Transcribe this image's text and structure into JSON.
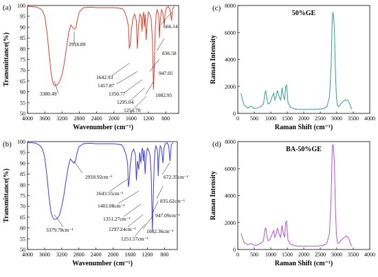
{
  "chart_data": [
    {
      "panel": "(a)",
      "type": "line",
      "xlabel": "Wavenumber (cm⁻¹)",
      "ylabel": "Transmittance(%)",
      "xlim": [
        4000,
        500
      ],
      "ylim": [
        50,
        100
      ],
      "xticks": [
        4000,
        3600,
        3200,
        2800,
        2400,
        2000,
        1600,
        1200,
        800
      ],
      "yticks": [
        50,
        55,
        60,
        65,
        70,
        75,
        80,
        85,
        90,
        95,
        100
      ],
      "color": "#d9402b",
      "x": [
        4000,
        3900,
        3800,
        3700,
        3650,
        3600,
        3550,
        3500,
        3450,
        3400,
        3380,
        3340,
        3300,
        3250,
        3200,
        3150,
        3100,
        3050,
        3000,
        2960,
        2918,
        2880,
        2850,
        2800,
        2700,
        2600,
        2500,
        2400,
        2300,
        2200,
        2100,
        2000,
        1900,
        1800,
        1750,
        1700,
        1660,
        1642,
        1620,
        1600,
        1560,
        1520,
        1480,
        1457,
        1430,
        1400,
        1370,
        1350,
        1330,
        1310,
        1295,
        1275,
        1254,
        1230,
        1200,
        1170,
        1140,
        1110,
        1082,
        1060,
        1040,
        1020,
        1000,
        980,
        960,
        947,
        930,
        900,
        870,
        836,
        810,
        780,
        740,
        700,
        666,
        640,
        600
      ],
      "y": [
        99.5,
        99.5,
        99.3,
        98.5,
        97.5,
        95,
        88,
        78,
        68,
        63.5,
        63,
        63,
        63.5,
        65,
        68,
        73,
        80,
        87,
        91,
        90,
        89,
        89.5,
        93,
        97,
        99,
        99.2,
        99.2,
        99,
        99,
        99,
        99,
        99,
        98.8,
        98.5,
        97,
        94,
        90,
        80,
        82,
        88,
        94,
        96,
        93,
        80,
        90,
        96,
        95,
        88,
        95,
        97,
        90,
        96,
        84,
        92,
        97,
        96,
        94,
        85,
        61,
        75,
        90,
        96,
        98,
        97,
        95,
        85,
        92,
        98,
        97,
        91,
        97,
        99,
        99.5,
        98,
        93,
        98.5,
        99.5
      ],
      "annotations": [
        "3380.49",
        "2918.89",
        "1642.93",
        "1457.87",
        "1350.77",
        "1295.04",
        "1254.70",
        "1082.95",
        "947.05",
        "836.58",
        "666.14"
      ]
    },
    {
      "panel": "(b)",
      "type": "line",
      "xlabel": "Wavenumber (cm⁻¹)",
      "ylabel": "Transmittance(%)",
      "xlim": [
        4000,
        500
      ],
      "ylim": [
        50,
        100
      ],
      "xticks": [
        4000,
        3600,
        3200,
        2800,
        2400,
        2000,
        1600,
        1200,
        800
      ],
      "yticks": [
        50,
        55,
        60,
        65,
        70,
        75,
        80,
        85,
        90,
        95,
        100
      ],
      "color": "#3a3ad9",
      "x": [
        4000,
        3900,
        3800,
        3700,
        3650,
        3600,
        3550,
        3500,
        3450,
        3400,
        3380,
        3340,
        3300,
        3250,
        3200,
        3150,
        3100,
        3050,
        3000,
        2960,
        2918,
        2880,
        2850,
        2800,
        2700,
        2600,
        2500,
        2400,
        2300,
        2200,
        2100,
        2000,
        1900,
        1800,
        1750,
        1700,
        1660,
        1643,
        1620,
        1600,
        1560,
        1520,
        1480,
        1455,
        1430,
        1401,
        1380,
        1351,
        1330,
        1310,
        1297,
        1275,
        1251,
        1230,
        1200,
        1170,
        1140,
        1110,
        1082,
        1060,
        1040,
        1020,
        1000,
        980,
        960,
        947,
        930,
        900,
        870,
        835,
        810,
        780,
        740,
        700,
        672,
        640,
        600
      ],
      "y": [
        99.5,
        99.5,
        99.2,
        98,
        96.5,
        93,
        85,
        75,
        67,
        64.5,
        64,
        64,
        64.5,
        66,
        70,
        75,
        82,
        88,
        92,
        91,
        90,
        91,
        94,
        97.5,
        99,
        99.2,
        99.2,
        99,
        99,
        99,
        99,
        99,
        98.8,
        98.5,
        97,
        94,
        90,
        79,
        82,
        89,
        95,
        96.5,
        94,
        82,
        91,
        87,
        95,
        90,
        96,
        97,
        91,
        96,
        85,
        93,
        97,
        96,
        94,
        85,
        59,
        75,
        90,
        96,
        98,
        97,
        95,
        84,
        92,
        98,
        97,
        90,
        97,
        99,
        99.5,
        98,
        91,
        98.5,
        99.5
      ],
      "annotations": [
        "3379.78cm⁻¹",
        "2918.92cm⁻¹",
        "1643.55cm⁻¹",
        "1401.08cm⁻¹",
        "1351.27cm⁻¹",
        "1297.24cm⁻¹",
        "1251.57cm⁻¹",
        "1082.36cm⁻¹",
        "947.09cm⁻¹",
        "835.62cm⁻¹",
        "672.35cm⁻¹"
      ]
    },
    {
      "panel": "(c)",
      "type": "line",
      "title": "50%GE",
      "xlabel": "Raman Shift (cm⁻¹)",
      "ylabel": "Raman Intensity",
      "xlim": [
        0,
        4000
      ],
      "ylim": [
        0,
        8000
      ],
      "xticks": [
        0,
        500,
        1000,
        1500,
        2000,
        2500,
        3000,
        3500,
        4000
      ],
      "yticks": [
        0,
        2000,
        4000,
        6000,
        8000
      ],
      "color": "#2e9c8c",
      "x": [
        100,
        150,
        200,
        300,
        400,
        500,
        600,
        700,
        780,
        820,
        850,
        880,
        920,
        980,
        1050,
        1090,
        1120,
        1160,
        1200,
        1260,
        1300,
        1340,
        1380,
        1420,
        1450,
        1480,
        1520,
        1600,
        1700,
        1800,
        1900,
        2000,
        2200,
        2400,
        2600,
        2700,
        2780,
        2830,
        2860,
        2880,
        2900,
        2930,
        2960,
        2990,
        3020,
        3060,
        3120,
        3200,
        3260,
        3300,
        3340,
        3380,
        3420,
        3460
      ],
      "y": [
        1500,
        900,
        600,
        400,
        550,
        350,
        400,
        500,
        700,
        1500,
        1700,
        1100,
        700,
        800,
        1300,
        1500,
        1000,
        1200,
        1700,
        1200,
        1000,
        1900,
        1300,
        1000,
        2000,
        2100,
        800,
        450,
        350,
        300,
        300,
        300,
        300,
        300,
        350,
        500,
        1200,
        3500,
        6800,
        7500,
        7300,
        6200,
        3000,
        1200,
        600,
        500,
        700,
        900,
        1000,
        1000,
        950,
        800,
        500,
        300
      ]
    },
    {
      "panel": "(d)",
      "type": "line",
      "title": "BA-50%GE",
      "xlabel": "Raman Shift (cm⁻¹)",
      "ylabel": "Raman Intensity",
      "xlim": [
        0,
        4000
      ],
      "ylim": [
        0,
        8000
      ],
      "xticks": [
        0,
        500,
        1000,
        1500,
        2000,
        2500,
        3000,
        3500,
        4000
      ],
      "yticks": [
        0,
        2000,
        4000,
        6000,
        8000
      ],
      "color": "#b24fd9",
      "x": [
        100,
        150,
        200,
        300,
        400,
        500,
        600,
        700,
        780,
        820,
        850,
        880,
        920,
        980,
        1050,
        1090,
        1120,
        1160,
        1200,
        1260,
        1300,
        1340,
        1380,
        1420,
        1450,
        1480,
        1520,
        1600,
        1700,
        1800,
        1900,
        2000,
        2200,
        2400,
        2600,
        2700,
        2780,
        2830,
        2860,
        2880,
        2900,
        2930,
        2960,
        2990,
        3020,
        3060,
        3120,
        3200,
        3260,
        3300,
        3340,
        3380,
        3420,
        3460
      ],
      "y": [
        1200,
        800,
        500,
        350,
        450,
        300,
        350,
        450,
        650,
        1500,
        1600,
        1000,
        650,
        750,
        1200,
        1400,
        900,
        1100,
        1600,
        1100,
        900,
        1800,
        1200,
        900,
        2000,
        2100,
        700,
        400,
        300,
        250,
        250,
        250,
        250,
        250,
        300,
        450,
        1200,
        3800,
        7200,
        7800,
        7600,
        6400,
        3000,
        1100,
        500,
        450,
        650,
        850,
        950,
        1000,
        900,
        700,
        400,
        250
      ]
    }
  ]
}
